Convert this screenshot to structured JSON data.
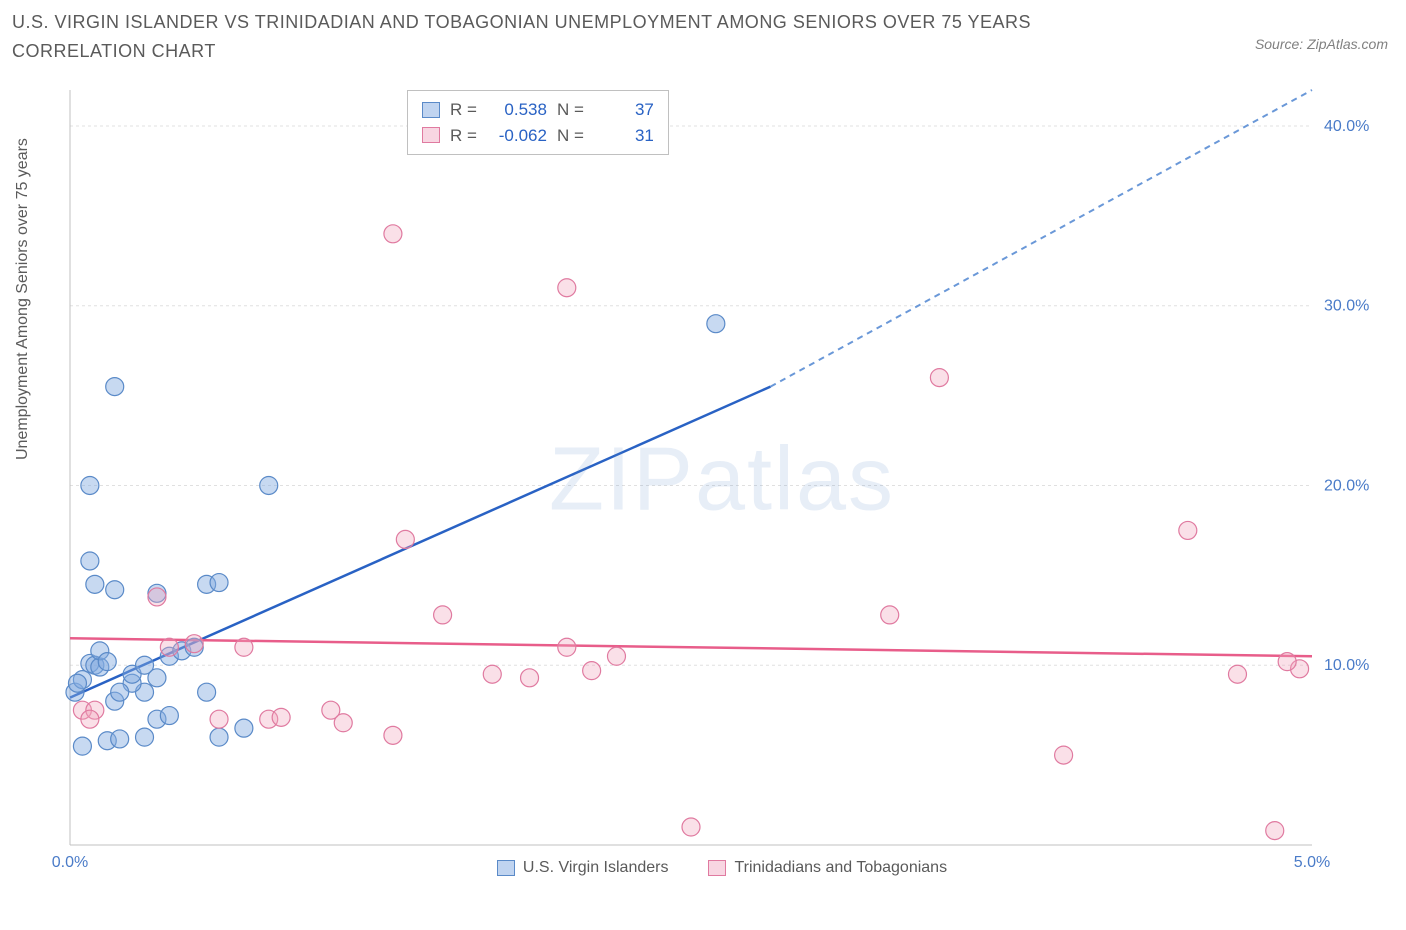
{
  "title": "U.S. VIRGIN ISLANDER VS TRINIDADIAN AND TOBAGONIAN UNEMPLOYMENT AMONG SENIORS OVER 75 YEARS CORRELATION CHART",
  "source": "Source: ZipAtlas.com",
  "y_axis_label": "Unemployment Among Seniors over 75 years",
  "watermark": "ZIPatlas",
  "chart": {
    "type": "scatter",
    "xlim": [
      0,
      5.0
    ],
    "ylim": [
      0,
      42
    ],
    "x_ticks": [
      0.0,
      5.0
    ],
    "x_tick_labels": [
      "0.0%",
      "5.0%"
    ],
    "y_ticks": [
      10,
      20,
      30,
      40
    ],
    "y_tick_labels": [
      "10.0%",
      "20.0%",
      "30.0%",
      "40.0%"
    ],
    "background_color": "#ffffff",
    "grid_color": "#e0e0e0",
    "axis_color": "#c0c0c0",
    "tick_label_color": "#4a7bc8",
    "tick_fontsize": 16,
    "title_fontsize": 18,
    "title_color": "#5a5a5a",
    "marker_radius": 9,
    "series": [
      {
        "name": "U.S. Virgin Islanders",
        "fill_color": "rgba(130,170,225,0.45)",
        "stroke_color": "#5a8ac8",
        "trend_color": "#2962c4",
        "trend_dash_color": "#6a98d8",
        "R": "0.538",
        "N": "37",
        "trend": {
          "x1": 0.0,
          "y1": 8.2,
          "x2": 2.82,
          "y2": 25.5,
          "x2_dash": 5.0,
          "y2_dash": 42.0
        },
        "points": [
          [
            0.02,
            8.5
          ],
          [
            0.05,
            9.2
          ],
          [
            0.03,
            9.0
          ],
          [
            0.08,
            10.1
          ],
          [
            0.1,
            10.0
          ],
          [
            0.12,
            9.9
          ],
          [
            0.05,
            5.5
          ],
          [
            0.15,
            5.8
          ],
          [
            0.2,
            5.9
          ],
          [
            0.3,
            6.0
          ],
          [
            0.35,
            7.0
          ],
          [
            0.4,
            7.2
          ],
          [
            0.18,
            8.0
          ],
          [
            0.3,
            8.5
          ],
          [
            0.25,
            9.0
          ],
          [
            0.55,
            8.5
          ],
          [
            0.6,
            6.0
          ],
          [
            0.7,
            6.5
          ],
          [
            0.12,
            10.8
          ],
          [
            0.18,
            14.2
          ],
          [
            0.1,
            14.5
          ],
          [
            0.08,
            15.8
          ],
          [
            0.35,
            14.0
          ],
          [
            0.25,
            9.5
          ],
          [
            0.55,
            14.5
          ],
          [
            0.6,
            14.6
          ],
          [
            0.08,
            20.0
          ],
          [
            0.8,
            20.0
          ],
          [
            0.18,
            25.5
          ],
          [
            2.6,
            29.0
          ],
          [
            0.4,
            10.5
          ],
          [
            0.45,
            10.8
          ],
          [
            0.5,
            11.0
          ],
          [
            0.3,
            10.0
          ],
          [
            0.35,
            9.3
          ],
          [
            0.15,
            10.2
          ],
          [
            0.2,
            8.5
          ]
        ]
      },
      {
        "name": "Trinidadians and Tobagonians",
        "fill_color": "rgba(240,165,190,0.35)",
        "stroke_color": "#e07aa0",
        "trend_color": "#e85d8a",
        "R": "-0.062",
        "N": "31",
        "trend": {
          "x1": 0.0,
          "y1": 11.5,
          "x2": 5.0,
          "y2": 10.5
        },
        "points": [
          [
            0.05,
            7.5
          ],
          [
            0.1,
            7.5
          ],
          [
            0.08,
            7.0
          ],
          [
            0.35,
            13.8
          ],
          [
            0.4,
            11.0
          ],
          [
            0.5,
            11.2
          ],
          [
            0.7,
            11.0
          ],
          [
            0.8,
            7.0
          ],
          [
            0.85,
            7.1
          ],
          [
            1.05,
            7.5
          ],
          [
            1.1,
            6.8
          ],
          [
            1.3,
            6.1
          ],
          [
            1.35,
            17.0
          ],
          [
            1.5,
            12.8
          ],
          [
            1.7,
            9.5
          ],
          [
            1.85,
            9.3
          ],
          [
            2.0,
            11.0
          ],
          [
            2.1,
            9.7
          ],
          [
            2.2,
            10.5
          ],
          [
            2.0,
            31.0
          ],
          [
            2.5,
            1.0
          ],
          [
            1.3,
            34.0
          ],
          [
            3.3,
            12.8
          ],
          [
            3.5,
            26.0
          ],
          [
            4.0,
            5.0
          ],
          [
            4.5,
            17.5
          ],
          [
            4.7,
            9.5
          ],
          [
            4.85,
            0.8
          ],
          [
            4.95,
            9.8
          ],
          [
            4.9,
            10.2
          ],
          [
            0.6,
            7.0
          ]
        ]
      }
    ]
  },
  "legend": {
    "series1_label": "U.S. Virgin Islanders",
    "series2_label": "Trinidadians and Tobagonians"
  },
  "stats_labels": {
    "R": "R =",
    "N": "N ="
  }
}
